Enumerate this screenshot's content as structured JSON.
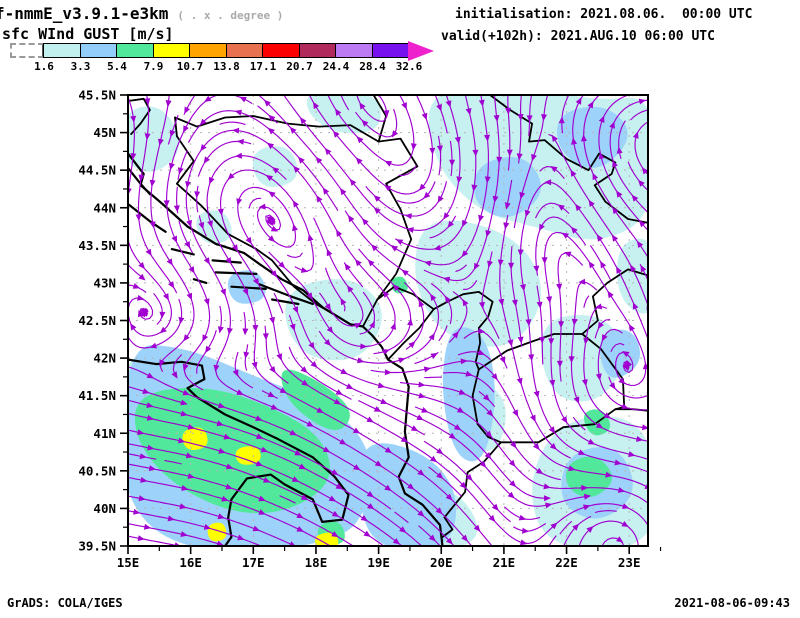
{
  "header": {
    "model_title": "f-nmmE_v3.9.1-e3km",
    "grid_note": "( . x . degree )",
    "field_title": "sfc WInd GUST [m/s]",
    "init_line": "initialisation: 2021.08.06.  00:00 UTC",
    "valid_line": "valid(+102h): 2021.AUG.10 06:00 UTC"
  },
  "footer": {
    "left": "GrADS: COLA/IGES",
    "right": "2021-08-06-09:43"
  },
  "colorbar": {
    "tick_labels": [
      "1.6",
      "3.3",
      "5.4",
      "7.9",
      "10.7",
      "13.8",
      "17.1",
      "20.7",
      "24.4",
      "28.4",
      "32.6"
    ],
    "segment_colors": [
      "#c2f0ee",
      "#93cdf9",
      "#52e89c",
      "#ffff00",
      "#ffa400",
      "#e87150",
      "#fb0000",
      "#b02a5c",
      "#bd7bf3",
      "#7711ee"
    ],
    "undershoot_color": "#ffffff",
    "overflow_color": "#ee22cc"
  },
  "map": {
    "lat_labels": [
      "45.5N",
      "45N",
      "44.5N",
      "44N",
      "43.5N",
      "43N",
      "42.5N",
      "42N",
      "41.5N",
      "41N",
      "40.5N",
      "40N",
      "39.5N"
    ],
    "lat_values": [
      45.5,
      45,
      44.5,
      44,
      43.5,
      43,
      42.5,
      42,
      41.5,
      41,
      40.5,
      40,
      39.5
    ],
    "lon_labels": [
      "15E",
      "16E",
      "17E",
      "18E",
      "19E",
      "20E",
      "21E",
      "22E",
      "23E"
    ],
    "lon_values": [
      15,
      16,
      17,
      18,
      19,
      20,
      21,
      22,
      23
    ],
    "streamline_color": "#a000d0",
    "coast_color": "#000000",
    "grid_color": "#b5b5b5",
    "shade_colors": {
      "cyan": "#c6f1f0",
      "blue": "#9dd3fa",
      "green": "#52e89c",
      "yellow": "#ffff00"
    }
  },
  "chart_data": {
    "type": "heatmap",
    "subtype": "streamline-shaded-map",
    "title": "sfc WInd GUST [m/s]",
    "model": "f-nmmE_v3.9.1-e3km",
    "initialisation": "2021.08.06. 00:00 UTC",
    "valid": "2021.AUG.10 06:00 UTC (+102h)",
    "lon_range_deg_east": [
      15,
      23.3
    ],
    "lat_range_deg_north": [
      39.5,
      45.5
    ],
    "gust_levels_ms": [
      1.6,
      3.3,
      5.4,
      7.9,
      10.7,
      13.8,
      17.1,
      20.7,
      24.4,
      28.4,
      32.6
    ],
    "level_colors": [
      "#ffffff",
      "#c2f0ee",
      "#93cdf9",
      "#52e89c",
      "#ffff00",
      "#ffa400",
      "#e87150",
      "#fb0000",
      "#b02a5c",
      "#bd7bf3",
      "#7711ee",
      "#ee22cc"
    ],
    "legend_position": "top-left horizontal colorbar",
    "grid": "dashed gray graticule every 0.5 deg lat / 1 deg lon",
    "flow_depiction": "purple streamlines with arrowheads showing near-surface wind; coherent WNW-ESE fan over the southern Adriatic and Apulia, numerous small eddies over the Dinaric Alps, Serbia and Macedonia",
    "shaded_features": [
      {
        "region": "southern Adriatic / Apulia / Gulf of Taranto (15-18.5E, 39.5-42N)",
        "gust_range_ms": "5.4-7.9 broad area with 7.9-10.7 cores near 16E 41N and 16.4E 39.6N"
      },
      {
        "region": "coastal band 18-19.5E, 42-43.5N",
        "gust_range_ms": "3.3-5.4"
      },
      {
        "region": "central Balkans (Bosnia, Serbia)",
        "gust_range_ms": "1.6-3.3 patchy"
      },
      {
        "region": "northeast quadrant (19-23E, 44-45.5N)",
        "gust_range_ms": "1.6-5.4 patchy"
      },
      {
        "region": "southeast (20.5-23E, 39.5-41.5N)",
        "gust_range_ms": "3.3-7.9 with small 5.4-7.9 cores"
      }
    ]
  }
}
